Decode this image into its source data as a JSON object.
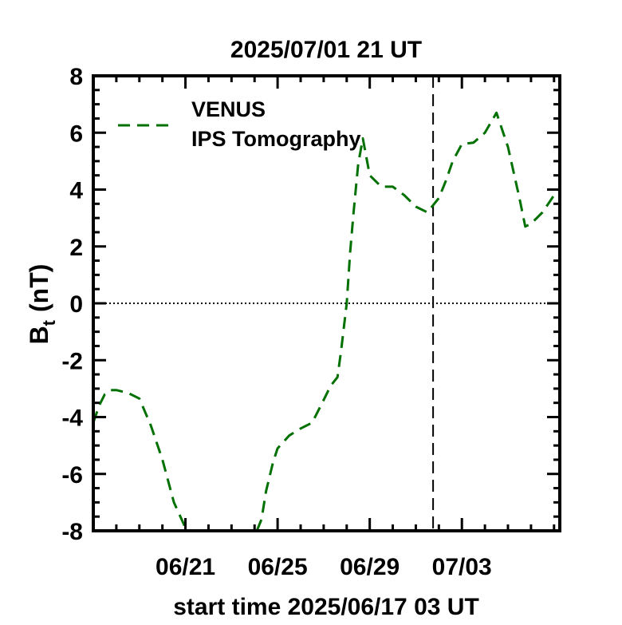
{
  "chart_data": {
    "type": "line",
    "title": "2025/07/01 21 UT",
    "xlabel": "start time 2025/06/17 03 UT",
    "ylabel_main": "B",
    "ylabel_sub": "t",
    "ylabel_unit": "(nT)",
    "xlim": [
      0,
      20.25
    ],
    "ylim": [
      -8,
      8
    ],
    "x_ticks": [
      {
        "x": 4,
        "label": "06/21"
      },
      {
        "x": 8,
        "label": "06/25"
      },
      {
        "x": 12,
        "label": "06/29"
      },
      {
        "x": 16,
        "label": "07/03"
      }
    ],
    "y_ticks": [
      {
        "y": -8,
        "label": "-8"
      },
      {
        "y": -6,
        "label": "-6"
      },
      {
        "y": -4,
        "label": "-4"
      },
      {
        "y": -2,
        "label": "-2"
      },
      {
        "y": 0,
        "label": "0"
      },
      {
        "y": 2,
        "label": "2"
      },
      {
        "y": 4,
        "label": "4"
      },
      {
        "y": 6,
        "label": "6"
      },
      {
        "y": 8,
        "label": "8"
      }
    ],
    "zero_line": true,
    "vertical_marker_x": 14.75,
    "legend": {
      "position": "top-left",
      "line1": "VENUS",
      "line2": "IPS Tomography"
    },
    "series": [
      {
        "color": "#007000",
        "dash": "dashed",
        "segments": [
          {
            "x": [
              0.0,
              0.25,
              0.5,
              0.75,
              1.0,
              1.5,
              2.0,
              2.5,
              3.0,
              3.5,
              4.0,
              4.25,
              4.45
            ],
            "y": [
              -4.2,
              -3.6,
              -3.2,
              -3.05,
              -3.05,
              -3.15,
              -3.35,
              -4.3,
              -5.5,
              -7.0,
              -7.9,
              -8.0,
              -8.0
            ]
          },
          {
            "x": [
              7.1,
              7.3,
              7.5,
              7.8,
              8.0,
              8.5,
              9.0,
              9.5,
              10.0,
              10.3,
              10.6,
              10.75,
              11.0,
              11.15,
              11.3,
              11.5,
              11.7,
              12.0,
              12.5,
              13.0,
              13.5,
              14.0,
              14.5,
              15.0,
              15.3,
              15.6,
              16.0,
              16.5,
              17.0,
              17.25,
              17.5,
              18.0,
              18.5,
              18.75,
              19.0,
              19.5,
              20.0,
              20.25
            ],
            "y": [
              -8.0,
              -7.6,
              -6.6,
              -5.6,
              -5.1,
              -4.65,
              -4.4,
              -4.2,
              -3.4,
              -2.9,
              -2.6,
              -1.7,
              0.0,
              1.8,
              3.2,
              4.9,
              5.8,
              4.5,
              4.1,
              4.1,
              3.8,
              3.4,
              3.2,
              3.7,
              4.3,
              5.0,
              5.6,
              5.65,
              6.0,
              6.35,
              6.7,
              5.5,
              3.7,
              2.7,
              2.8,
              3.2,
              3.8,
              4.0
            ]
          }
        ]
      }
    ]
  }
}
